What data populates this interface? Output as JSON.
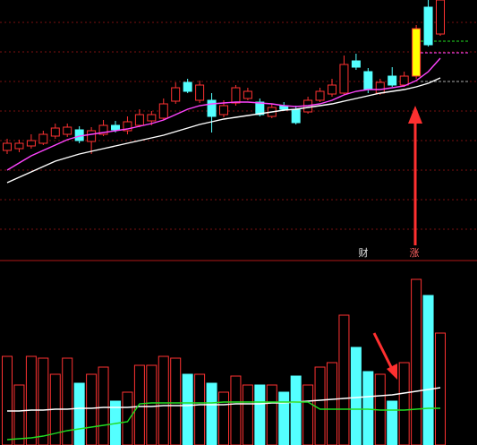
{
  "chart_data": [
    {
      "type": "candlestick",
      "open": [
        122,
        124,
        127,
        130,
        138,
        140,
        145,
        132,
        140,
        150,
        144,
        150,
        155,
        158,
        177,
        198,
        178,
        178,
        162,
        175,
        180,
        176,
        160,
        172,
        168,
        165,
        178,
        185,
        186,
        222,
        210,
        186,
        205,
        195,
        205,
        282,
        252
      ],
      "high": [
        135,
        134,
        140,
        144,
        152,
        152,
        149,
        148,
        156,
        155,
        160,
        168,
        166,
        180,
        198,
        202,
        200,
        186,
        178,
        195,
        192,
        180,
        174,
        176,
        172,
        182,
        192,
        202,
        228,
        230,
        214,
        202,
        215,
        210,
        262,
        290,
        290
      ],
      "low": [
        118,
        120,
        124,
        128,
        135,
        137,
        130,
        118,
        138,
        142,
        140,
        148,
        150,
        156,
        174,
        186,
        175,
        142,
        159,
        172,
        178,
        160,
        158,
        166,
        151,
        163,
        176,
        182,
        184,
        212,
        186,
        184,
        193,
        193,
        202,
        238,
        250
      ],
      "close": [
        130,
        130,
        133,
        140,
        147,
        148,
        133,
        144,
        150,
        145,
        154,
        162,
        162,
        174,
        192,
        188,
        195,
        160,
        172,
        192,
        188,
        162,
        170,
        168,
        153,
        178,
        188,
        195,
        218,
        215,
        190,
        198,
        195,
        205,
        258,
        240,
        290
      ],
      "up_color": "#ff3232",
      "down_color": "#54ffff",
      "highlight": {
        "index": 34,
        "color": "#ffff00"
      },
      "series": [
        {
          "color": "#ffffff",
          "values": [
            86,
            92,
            98,
            104,
            110,
            114,
            118,
            121,
            124,
            127,
            130,
            133,
            136,
            139,
            143,
            147,
            151,
            154,
            157,
            159,
            161,
            163,
            165,
            167,
            168,
            170,
            172,
            174,
            177,
            180,
            183,
            186,
            188,
            190,
            193,
            197,
            203
          ]
        },
        {
          "color": "#ff44ff",
          "values": [
            100,
            108,
            116,
            122,
            128,
            134,
            138,
            140,
            142,
            144,
            146,
            149,
            152,
            156,
            162,
            168,
            172,
            174,
            175,
            176,
            176,
            175,
            174,
            172,
            171,
            172,
            174,
            178,
            184,
            188,
            190,
            190,
            192,
            194,
            200,
            210,
            225
          ]
        }
      ],
      "ylim": [
        0,
        290
      ],
      "annotations": [
        "财",
        "涨"
      ]
    },
    {
      "type": "bar",
      "values": [
        99,
        67,
        99,
        97,
        79,
        97,
        69,
        79,
        87,
        49,
        59,
        89,
        89,
        99,
        97,
        79,
        79,
        69,
        59,
        77,
        67,
        67,
        67,
        59,
        77,
        67,
        87,
        92,
        145,
        109,
        82,
        79,
        49,
        92,
        185,
        167,
        125
      ],
      "series": [
        {
          "color": "#ffffff",
          "values": [
            38,
            38,
            39,
            39,
            40,
            40,
            41,
            41,
            42,
            42,
            42,
            43,
            43,
            44,
            44,
            44,
            45,
            45,
            45,
            46,
            46,
            46,
            47,
            47,
            48,
            49,
            50,
            51,
            52,
            53,
            54,
            55,
            56,
            58,
            60,
            62,
            64
          ]
        },
        {
          "color": "#22dd22",
          "values": [
            6,
            7,
            8,
            10,
            13,
            16,
            18,
            20,
            22,
            24,
            26,
            46,
            47,
            47,
            47,
            47,
            47,
            47,
            48,
            48,
            48,
            48,
            48,
            48,
            48,
            48,
            40,
            40,
            40,
            40,
            40,
            39,
            39,
            39,
            40,
            41,
            41
          ]
        }
      ],
      "ylim": [
        0,
        207
      ]
    }
  ]
}
